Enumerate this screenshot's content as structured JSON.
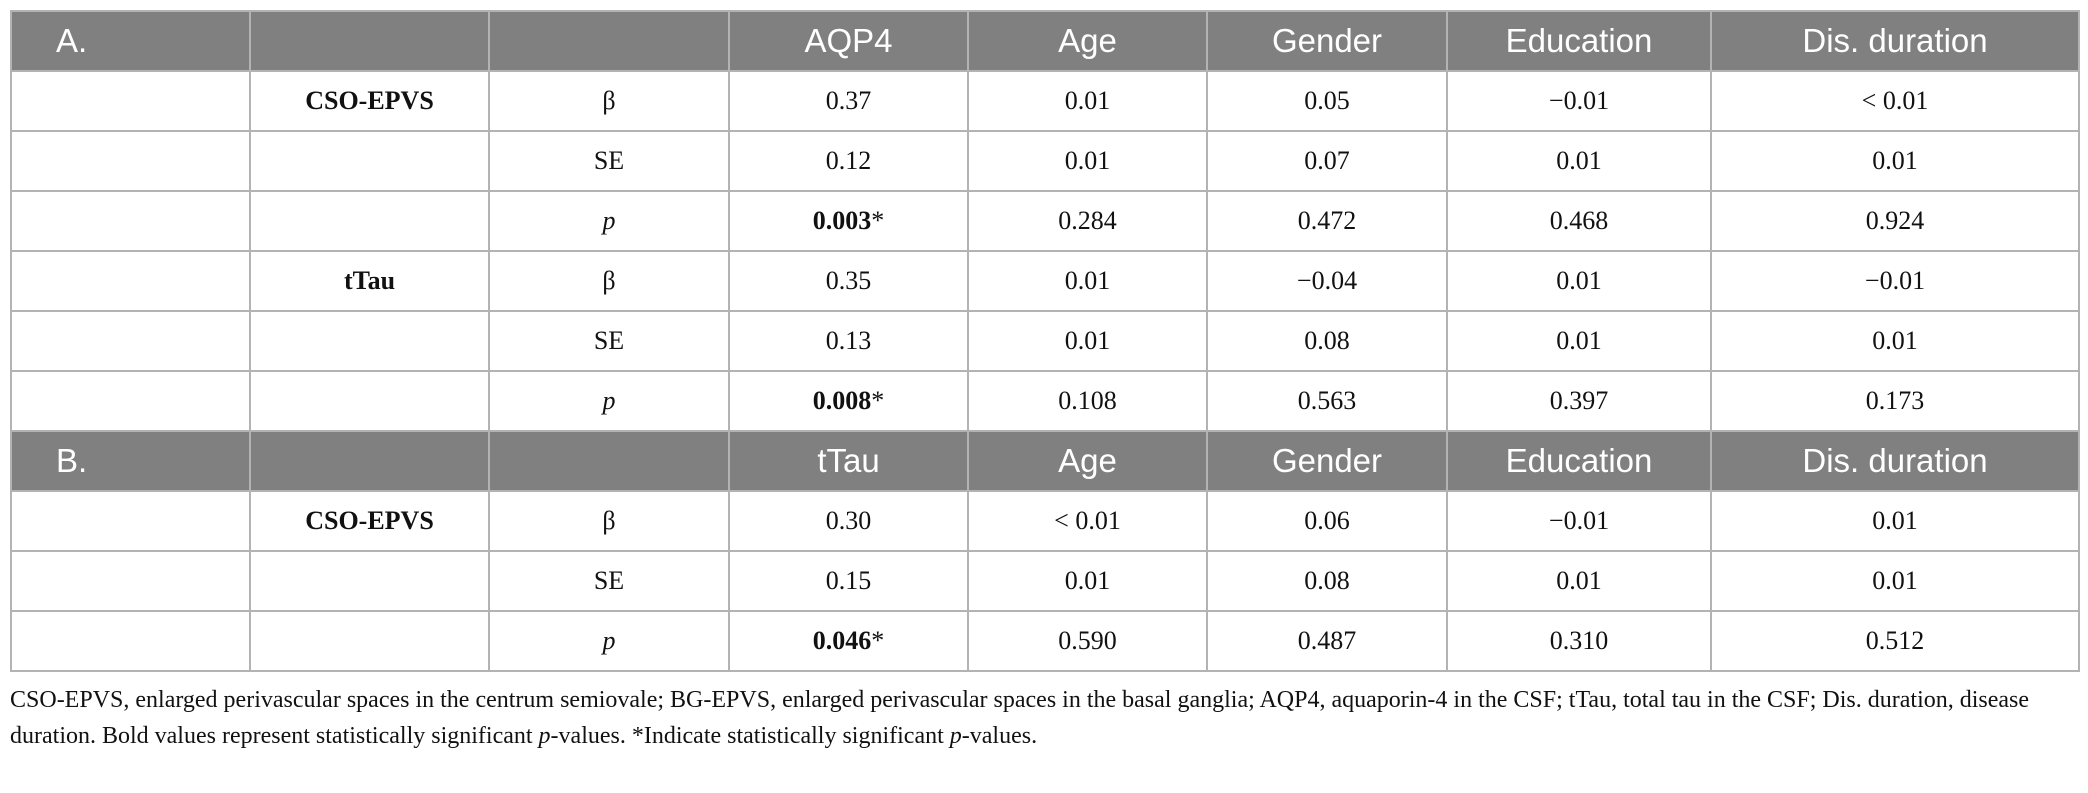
{
  "table": {
    "columns": [
      "AQP4",
      "Age",
      "Gender",
      "Education",
      "Dis. duration"
    ],
    "sections": [
      {
        "label": "A.",
        "headers": [
          "AQP4",
          "Age",
          "Gender",
          "Education",
          "Dis. duration"
        ],
        "groups": [
          {
            "outcome": "CSO-EPVS",
            "rows": [
              {
                "stat": "β",
                "values": [
                  "0.37",
                  "0.01",
                  "0.05",
                  "−0.01",
                  "< 0.01"
                ],
                "sig": ""
              },
              {
                "stat": "SE",
                "values": [
                  "0.12",
                  "0.01",
                  "0.07",
                  "0.01",
                  "0.01"
                ],
                "sig": ""
              },
              {
                "stat": "p",
                "values": [
                  "0.003",
                  "0.284",
                  "0.472",
                  "0.468",
                  "0.924"
                ],
                "sig": "*"
              }
            ]
          },
          {
            "outcome": "tTau",
            "rows": [
              {
                "stat": "β",
                "values": [
                  "0.35",
                  "0.01",
                  "−0.04",
                  "0.01",
                  "−0.01"
                ],
                "sig": ""
              },
              {
                "stat": "SE",
                "values": [
                  "0.13",
                  "0.01",
                  "0.08",
                  "0.01",
                  "0.01"
                ],
                "sig": ""
              },
              {
                "stat": "p",
                "values": [
                  "0.008",
                  "0.108",
                  "0.563",
                  "0.397",
                  "0.173"
                ],
                "sig": "*"
              }
            ]
          }
        ]
      },
      {
        "label": "B.",
        "headers": [
          "tTau",
          "Age",
          "Gender",
          "Education",
          "Dis. duration"
        ],
        "groups": [
          {
            "outcome": "CSO-EPVS",
            "rows": [
              {
                "stat": "β",
                "values": [
                  "0.30",
                  "< 0.01",
                  "0.06",
                  "−0.01",
                  "0.01"
                ],
                "sig": ""
              },
              {
                "stat": "SE",
                "values": [
                  "0.15",
                  "0.01",
                  "0.08",
                  "0.01",
                  "0.01"
                ],
                "sig": ""
              },
              {
                "stat": "p",
                "values": [
                  "0.046",
                  "0.590",
                  "0.487",
                  "0.310",
                  "0.512"
                ],
                "sig": "*"
              }
            ]
          }
        ]
      }
    ]
  },
  "footnote": {
    "part1": "CSO-EPVS, enlarged perivascular spaces in the centrum semiovale; BG-EPVS, enlarged perivascular spaces in the basal ganglia; AQP4, aquaporin-4 in the CSF; tTau, total tau in the CSF; Dis. duration, disease duration. Bold values represent statistically significant ",
    "p_italic": "p",
    "part2": "-values. *Indicate statistically significant ",
    "p_italic2": "p",
    "part3": "-values."
  },
  "colors": {
    "header_bg": "#808080",
    "header_text": "#ffffff",
    "grid": "#b3b3b3"
  }
}
